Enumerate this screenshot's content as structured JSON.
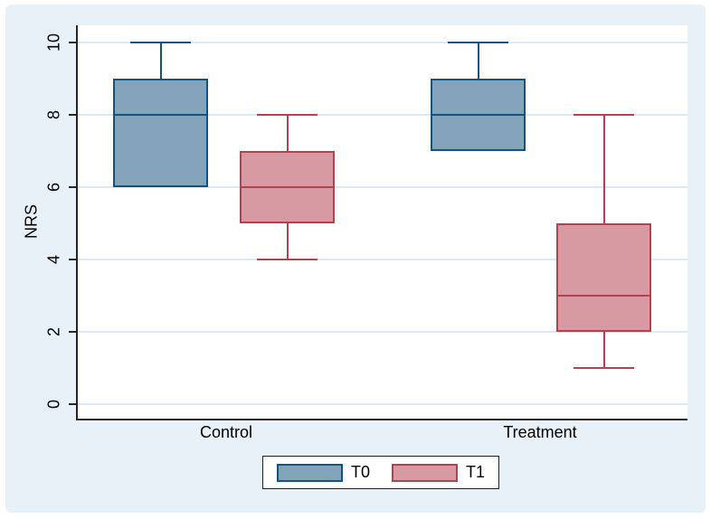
{
  "colors": {
    "page_bg": "#ffffff",
    "graph_bg": "#e9f1f8",
    "plot_bg": "#ffffff",
    "grid": "#d9e8f4",
    "axis": "#262626",
    "t0_fill": "#84a4bc",
    "t0_stroke": "#14537c",
    "t1_fill": "#d89aa2",
    "t1_stroke": "#b0434f"
  },
  "chart_data": {
    "type": "boxplot",
    "title": "",
    "xlabel": "",
    "ylabel": "NRS",
    "ylim": [
      0,
      10
    ],
    "yticks": [
      0,
      2,
      4,
      6,
      8,
      10
    ],
    "grid": true,
    "categories": [
      "Control",
      "Treatment"
    ],
    "series": [
      {
        "name": "T0",
        "fill": "#84a4bc",
        "stroke": "#14537c",
        "boxes": [
          {
            "category": "Control",
            "whisker_low": 6,
            "q1": 6,
            "median": 8,
            "q3": 9,
            "whisker_high": 10
          },
          {
            "category": "Treatment",
            "whisker_low": 7,
            "q1": 7,
            "median": 8,
            "q3": 9,
            "whisker_high": 10
          }
        ]
      },
      {
        "name": "T1",
        "fill": "#d89aa2",
        "stroke": "#b0434f",
        "boxes": [
          {
            "category": "Control",
            "whisker_low": 4,
            "q1": 5,
            "median": 6,
            "q3": 7,
            "whisker_high": 8
          },
          {
            "category": "Treatment",
            "whisker_low": 1,
            "q1": 2,
            "median": 3,
            "q3": 5,
            "whisker_high": 8
          }
        ]
      }
    ],
    "legend": {
      "position": "bottom",
      "entries": [
        "T0",
        "T1"
      ]
    }
  }
}
